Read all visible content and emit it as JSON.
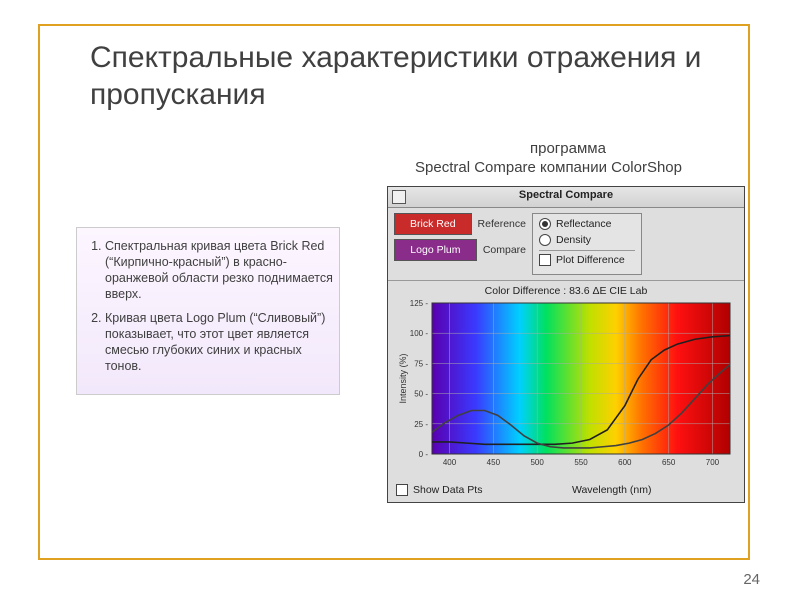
{
  "slide": {
    "frame_color": "#e0a020",
    "title": "Спектральные характеристики отражения и пропускания",
    "subtitle_line1": "программа",
    "subtitle_line2": "Spectral Compare компании ColorShop",
    "page_number": "24"
  },
  "left_panel": {
    "bg_gradient_from": "#fdf6ff",
    "bg_gradient_to": "#f2e8fb",
    "items": [
      "Спектральная кривая цвета Brick Red (“Кирпично-красный”) в красно-оранжевой области резко поднимается вверх.",
      "Кривая цвета Logo Plum (“Сливовый”) показывает, что этот цвет является смесью глубоких синих и красных тонов."
    ]
  },
  "app": {
    "window_title": "Spectral Compare",
    "swatches": [
      {
        "label": "Brick Red",
        "color": "#c92a2a",
        "caption": "Reference"
      },
      {
        "label": "Logo Plum",
        "color": "#8a2d8a",
        "caption": "Compare"
      }
    ],
    "radio_options": [
      {
        "label": "Reflectance",
        "checked": true
      },
      {
        "label": "Density",
        "checked": false
      }
    ],
    "plot_diff_label": "Plot Difference",
    "chart_title": "Color Difference : 83.6 ΔE CIE Lab",
    "show_pts_label": "Show Data Pts",
    "chart": {
      "type": "spectral-line",
      "xlabel": "Wavelength (nm)",
      "ylabel": "Intensity (%)",
      "xlim": [
        380,
        720
      ],
      "ylim": [
        0,
        125
      ],
      "xticks": [
        400,
        450,
        500,
        550,
        600,
        650,
        700
      ],
      "yticks": [
        0,
        25,
        50,
        75,
        100,
        125
      ],
      "label_fontsize": 9,
      "tick_fontsize": 8,
      "axis_color": "#333333",
      "grid_color": "#aaaaaa",
      "plot_bg": "#ffffff",
      "spectrum_stops": [
        {
          "nm": 380,
          "color": "#5a00b0"
        },
        {
          "nm": 430,
          "color": "#3a3aff"
        },
        {
          "nm": 480,
          "color": "#00d0ff"
        },
        {
          "nm": 510,
          "color": "#00e060"
        },
        {
          "nm": 560,
          "color": "#c0e000"
        },
        {
          "nm": 590,
          "color": "#ffd000"
        },
        {
          "nm": 620,
          "color": "#ff7000"
        },
        {
          "nm": 660,
          "color": "#ff1010"
        },
        {
          "nm": 720,
          "color": "#b00000"
        }
      ],
      "series": [
        {
          "name": "Brick Red",
          "color": "#202020",
          "width": 1.6,
          "points": [
            [
              380,
              10
            ],
            [
              400,
              10
            ],
            [
              420,
              9
            ],
            [
              440,
              8
            ],
            [
              460,
              8
            ],
            [
              480,
              8
            ],
            [
              500,
              8
            ],
            [
              520,
              8
            ],
            [
              540,
              9
            ],
            [
              560,
              12
            ],
            [
              580,
              20
            ],
            [
              600,
              40
            ],
            [
              615,
              62
            ],
            [
              630,
              78
            ],
            [
              645,
              86
            ],
            [
              660,
              91
            ],
            [
              680,
              95
            ],
            [
              700,
              97
            ],
            [
              720,
              98
            ]
          ]
        },
        {
          "name": "Logo Plum",
          "color": "#404040",
          "width": 1.6,
          "points": [
            [
              380,
              18
            ],
            [
              395,
              26
            ],
            [
              410,
              32
            ],
            [
              425,
              36
            ],
            [
              440,
              36
            ],
            [
              455,
              32
            ],
            [
              470,
              24
            ],
            [
              485,
              15
            ],
            [
              500,
              9
            ],
            [
              515,
              6
            ],
            [
              530,
              5
            ],
            [
              545,
              5
            ],
            [
              560,
              5
            ],
            [
              575,
              6
            ],
            [
              590,
              7
            ],
            [
              605,
              9
            ],
            [
              620,
              12
            ],
            [
              635,
              17
            ],
            [
              650,
              24
            ],
            [
              665,
              34
            ],
            [
              680,
              46
            ],
            [
              695,
              58
            ],
            [
              710,
              68
            ],
            [
              720,
              74
            ]
          ]
        }
      ]
    }
  }
}
